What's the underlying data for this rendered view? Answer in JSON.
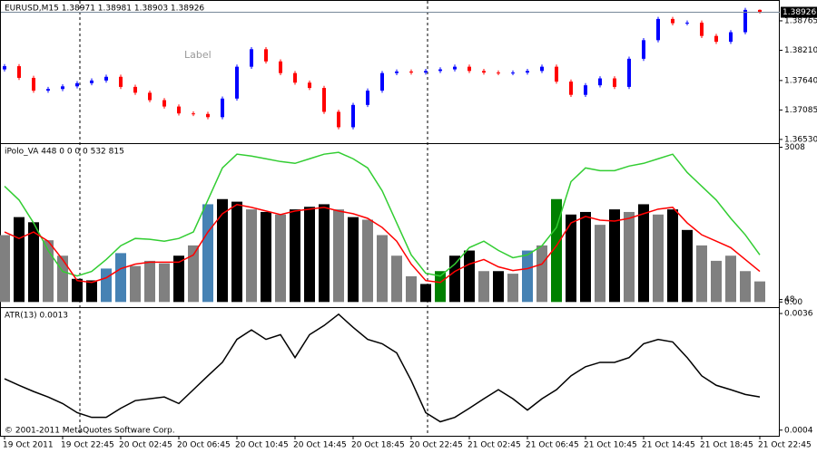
{
  "chart_data": [
    {
      "type": "candlestick",
      "title": "EURUSD,M15  1.38971 1.38981 1.38903 1.38926",
      "annotation": "Label",
      "up_color": "#0000ff",
      "down_color": "#ff0000",
      "current_price": 1.38926,
      "ylim": [
        1.3646,
        1.3914
      ],
      "yticks": [
        1.38765,
        {
          "value": 1.3821,
          "label": "1.38210"
        },
        {
          "value": 1.3764,
          "label": "1.37640"
        },
        1.37085,
        {
          "value": 1.3653,
          "label": "1.36530"
        }
      ],
      "open": [
        1.3785,
        1.3791,
        1.3769,
        1.3745,
        1.3748,
        1.3753,
        1.3759,
        1.3764,
        1.3771,
        1.3752,
        1.3741,
        1.3727,
        1.3715,
        1.3702,
        1.3701,
        1.3695,
        1.373,
        1.379,
        1.3823,
        1.38,
        1.3778,
        1.376,
        1.375,
        1.3705,
        1.3676,
        1.3718,
        1.3745,
        1.3778,
        1.3781,
        1.3779,
        1.3782,
        1.3785,
        1.379,
        1.3782,
        1.3779,
        1.3778,
        1.3779,
        1.3782,
        1.379,
        1.3762,
        1.3737,
        1.3755,
        1.3768,
        1.3752,
        1.3805,
        1.384,
        1.388,
        1.3872,
        1.3873,
        1.3848,
        1.3837,
        1.3855,
        1.38971
      ],
      "high": [
        1.3795,
        1.3795,
        1.3773,
        1.3752,
        1.3757,
        1.3763,
        1.3768,
        1.3775,
        1.3775,
        1.3756,
        1.3745,
        1.3731,
        1.3719,
        1.3706,
        1.3705,
        1.3734,
        1.3794,
        1.3827,
        1.3827,
        1.3804,
        1.3782,
        1.3764,
        1.3754,
        1.3709,
        1.3722,
        1.3749,
        1.3782,
        1.3785,
        1.3785,
        1.3786,
        1.3789,
        1.3794,
        1.3794,
        1.3786,
        1.3783,
        1.3783,
        1.3786,
        1.3794,
        1.3794,
        1.3766,
        1.3759,
        1.3772,
        1.3772,
        1.3809,
        1.3844,
        1.3884,
        1.3884,
        1.3877,
        1.3877,
        1.3852,
        1.3859,
        1.3901,
        1.38981
      ],
      "low": [
        1.3781,
        1.3765,
        1.3741,
        1.3741,
        1.3744,
        1.3749,
        1.3755,
        1.376,
        1.3748,
        1.3737,
        1.3723,
        1.3711,
        1.3698,
        1.3697,
        1.3691,
        1.3691,
        1.3726,
        1.3786,
        1.3796,
        1.3774,
        1.3756,
        1.3746,
        1.3701,
        1.3672,
        1.3672,
        1.3714,
        1.3741,
        1.3774,
        1.3775,
        1.3775,
        1.3778,
        1.3781,
        1.3778,
        1.3775,
        1.3774,
        1.3774,
        1.3775,
        1.3778,
        1.3758,
        1.3733,
        1.3733,
        1.3751,
        1.3748,
        1.3748,
        1.3801,
        1.3836,
        1.3868,
        1.3868,
        1.3844,
        1.3833,
        1.3833,
        1.3851,
        1.38903
      ],
      "close": [
        1.3791,
        1.3769,
        1.3745,
        1.3748,
        1.3753,
        1.3759,
        1.3764,
        1.3771,
        1.3752,
        1.3741,
        1.3727,
        1.3715,
        1.3702,
        1.3701,
        1.3695,
        1.373,
        1.379,
        1.3823,
        1.38,
        1.3778,
        1.376,
        1.375,
        1.3705,
        1.3676,
        1.3718,
        1.3745,
        1.3778,
        1.3781,
        1.3779,
        1.3782,
        1.3785,
        1.379,
        1.3782,
        1.3779,
        1.3778,
        1.3779,
        1.3782,
        1.379,
        1.3762,
        1.3737,
        1.3755,
        1.3768,
        1.3752,
        1.3805,
        1.384,
        1.388,
        1.3872,
        1.3873,
        1.3848,
        1.3837,
        1.3855,
        1.38971,
        1.38926
      ]
    },
    {
      "type": "bar",
      "title": "iPolo_VA 448 0 0 0 0 532 815",
      "ylim": [
        -100,
        3070
      ],
      "yticks": [
        {
          "value": 0,
          "label": "0.00"
        },
        48,
        3008
      ],
      "series": [
        {
          "type": "bar",
          "values": [
            1300,
            1650,
            1550,
            1200,
            900,
            450,
            420,
            650,
            950,
            700,
            800,
            750,
            900,
            1100,
            1900,
            2000,
            1950,
            1800,
            1750,
            1700,
            1800,
            1850,
            1900,
            1800,
            1650,
            1600,
            1300,
            900,
            500,
            350,
            600,
            900,
            1000,
            600,
            600,
            550,
            1000,
            1100,
            2000,
            1700,
            1750,
            1500,
            1800,
            1750,
            1900,
            1700,
            1800,
            1400,
            1100,
            800,
            900,
            600,
            400
          ],
          "colors": [
            "#808080",
            "#000000",
            "#000000",
            "#808080",
            "#808080",
            "#000000",
            "#000000",
            "#4682b4",
            "#4682b4",
            "#808080",
            "#808080",
            "#808080",
            "#000000",
            "#808080",
            "#4682b4",
            "#000000",
            "#000000",
            "#808080",
            "#000000",
            "#808080",
            "#000000",
            "#000000",
            "#000000",
            "#808080",
            "#000000",
            "#808080",
            "#808080",
            "#808080",
            "#808080",
            "#000000",
            "#008000",
            "#000000",
            "#000000",
            "#808080",
            "#000000",
            "#808080",
            "#4682b4",
            "#808080",
            "#008000",
            "#000000",
            "#000000",
            "#808080",
            "#000000",
            "#808080",
            "#000000",
            "#808080",
            "#000000",
            "#000000",
            "#808080",
            "#808080",
            "#808080",
            "#808080",
            "#808080"
          ]
        },
        {
          "type": "line",
          "color": "#32cd32",
          "values": [
            2250,
            1982,
            1537,
            1003,
            594,
            505,
            594,
            826,
            1093,
            1235,
            1218,
            1182,
            1235,
            1360,
            1982,
            2606,
            2873,
            2837,
            2784,
            2730,
            2695,
            2784,
            2873,
            2909,
            2784,
            2606,
            2161,
            1537,
            915,
            559,
            505,
            737,
            1057,
            1182,
            1003,
            861,
            915,
            1093,
            1449,
            2339,
            2606,
            2553,
            2553,
            2642,
            2695,
            2784,
            2873,
            2518,
            2250,
            1982,
            1626,
            1306,
            915
          ]
        },
        {
          "type": "line",
          "color": "#ff0000",
          "values": [
            1360,
            1235,
            1360,
            1182,
            826,
            416,
            381,
            470,
            648,
            737,
            773,
            773,
            773,
            915,
            1360,
            1716,
            1894,
            1840,
            1769,
            1698,
            1769,
            1805,
            1840,
            1769,
            1716,
            1626,
            1449,
            1182,
            737,
            416,
            381,
            594,
            737,
            826,
            683,
            612,
            648,
            737,
            1093,
            1537,
            1662,
            1591,
            1573,
            1626,
            1716,
            1805,
            1840,
            1537,
            1306,
            1182,
            1057,
            826,
            594
          ]
        }
      ]
    },
    {
      "type": "line",
      "title": "ATR(13) 0.0013",
      "color": "#000000",
      "ylim": [
        0.00022,
        0.00375
      ],
      "yticks": [
        0.0036,
        0.0004
      ],
      "categories": [
        "19 Oct 2011",
        null,
        null,
        null,
        "19 Oct 22:45",
        null,
        null,
        null,
        "20 Oct 02:45",
        null,
        null,
        null,
        "20 Oct 06:45",
        null,
        null,
        null,
        "20 Oct 10:45",
        null,
        null,
        null,
        "20 Oct 14:45",
        null,
        null,
        null,
        "20 Oct 18:45",
        null,
        null,
        null,
        "20 Oct 22:45",
        null,
        null,
        null,
        "21 Oct 02:45",
        null,
        null,
        null,
        "21 Oct 06:45",
        null,
        null,
        null,
        "21 Oct 10:45",
        null,
        null,
        null,
        "21 Oct 14:45",
        null,
        null,
        null,
        "21 Oct 18:45",
        null,
        null,
        null,
        "21 Oct 22:45"
      ],
      "values": [
        0.00181,
        0.00163,
        0.00146,
        0.00131,
        0.00113,
        0.00088,
        0.00075,
        0.00075,
        0.001,
        0.00121,
        0.00126,
        0.00131,
        0.00113,
        0.00151,
        0.00189,
        0.00226,
        0.00289,
        0.00315,
        0.00289,
        0.00302,
        0.00239,
        0.00302,
        0.00327,
        0.00358,
        0.00322,
        0.00289,
        0.00277,
        0.00252,
        0.00176,
        0.00088,
        0.00063,
        0.00075,
        0.001,
        0.00126,
        0.00151,
        0.00126,
        0.00095,
        0.00126,
        0.00151,
        0.00189,
        0.00214,
        0.00226,
        0.00226,
        0.00239,
        0.00277,
        0.00289,
        0.00282,
        0.00239,
        0.00189,
        0.00163,
        0.00151,
        0.00138,
        0.00131
      ],
      "footer": "© 2001-2011 MetaQuotes Software Corp."
    }
  ]
}
